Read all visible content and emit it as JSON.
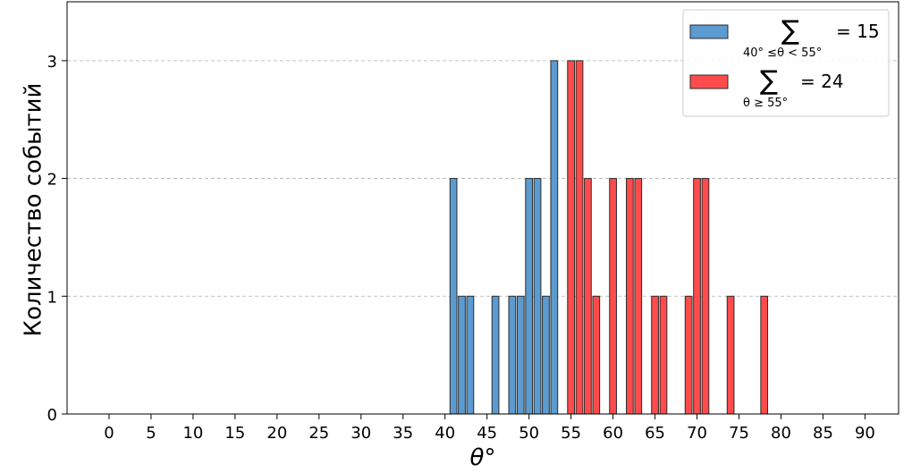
{
  "chart_data": {
    "type": "bar",
    "xlabel": "θ°",
    "ylabel": "Количество событий",
    "xlim": [
      -5,
      94
    ],
    "ylim": [
      0,
      3.5
    ],
    "xticks": [
      0,
      5,
      10,
      15,
      20,
      25,
      30,
      35,
      40,
      45,
      50,
      55,
      60,
      65,
      70,
      75,
      80,
      85,
      90
    ],
    "xtick_labels": [
      "0",
      "5",
      "10",
      "15",
      "20",
      "25",
      "30",
      "35",
      "40",
      "45",
      "50",
      "55",
      "60",
      "65",
      "70",
      "75",
      "80",
      "85",
      "90"
    ],
    "yticks": [
      0,
      1,
      2,
      3
    ],
    "ytick_labels": [
      "0",
      "1",
      "2",
      "3"
    ],
    "grid": "y-dashed",
    "legend_position": "top-right",
    "series": [
      {
        "name": "Σ 40° ≤ θ < 55° = 15",
        "legend_sum_symbol": "∑",
        "legend_subscript": "40° ≤θ < 55°",
        "legend_value": "= 15",
        "color": "#5b9bd0",
        "x": [
          41,
          42,
          43,
          46,
          48,
          49,
          50,
          51,
          52,
          53
        ],
        "values": [
          2,
          1,
          1,
          1,
          1,
          1,
          2,
          2,
          1,
          3
        ]
      },
      {
        "name": "Σ θ ≥ 55° = 24",
        "legend_sum_symbol": "∑",
        "legend_subscript": "θ ≥ 55°",
        "legend_value": "= 24",
        "color": "#ff4b4b",
        "x": [
          55,
          56,
          57,
          58,
          60,
          62,
          63,
          65,
          66,
          69,
          70,
          71,
          74,
          78
        ],
        "values": [
          3,
          3,
          2,
          1,
          2,
          2,
          2,
          1,
          1,
          1,
          2,
          2,
          1,
          1
        ]
      }
    ],
    "zero_x": [
      0,
      1,
      2,
      3,
      4,
      5,
      6,
      7,
      8,
      9,
      10,
      11,
      12,
      13,
      14,
      15,
      16,
      17,
      18,
      19,
      20,
      21,
      22,
      23,
      24,
      25,
      26,
      27,
      28,
      29,
      30,
      31,
      32,
      33,
      34,
      35,
      36,
      37,
      38,
      39,
      40,
      79,
      80,
      81,
      82,
      83,
      84,
      85,
      86,
      87,
      88,
      89,
      90
    ]
  }
}
